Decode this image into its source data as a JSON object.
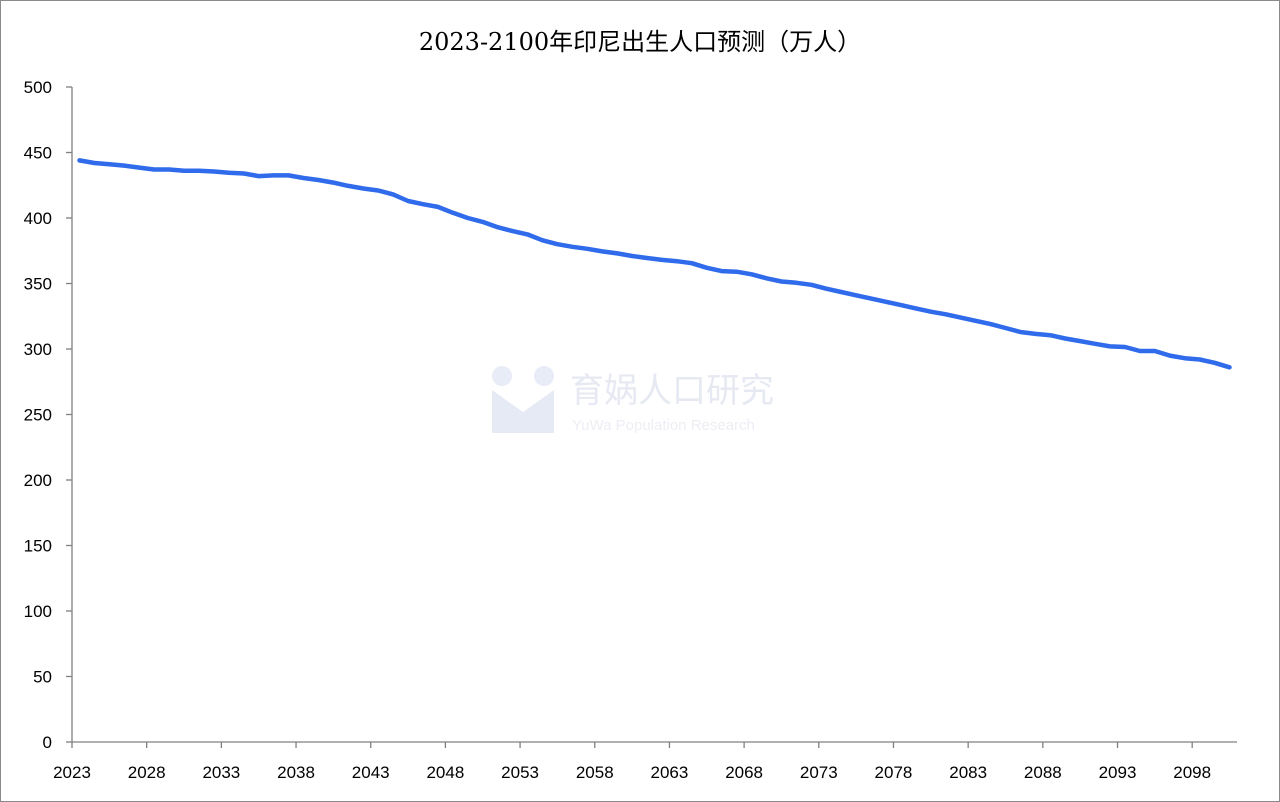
{
  "chart_data": {
    "type": "line",
    "title": "2023-2100年印尼出生人口预测（万人）",
    "xlabel": "",
    "ylabel": "",
    "ylim": [
      0,
      500
    ],
    "yticks": [
      0,
      50,
      100,
      150,
      200,
      250,
      300,
      350,
      400,
      450,
      500
    ],
    "xtick_labels": [
      "2023",
      "2028",
      "2033",
      "2038",
      "2043",
      "2048",
      "2053",
      "2058",
      "2063",
      "2068",
      "2073",
      "2078",
      "2083",
      "2088",
      "2093",
      "2098"
    ],
    "grid": false,
    "legend": "none",
    "x_start": 2023,
    "x_end": 2100,
    "series": [
      {
        "name": "出生人口",
        "color": "#2f6bea",
        "values": [
          444,
          442,
          441,
          440,
          438.5,
          437,
          437,
          436,
          436,
          435.5,
          434.5,
          434,
          432,
          432.5,
          432.5,
          430.5,
          429,
          427,
          424.5,
          422.5,
          421,
          418,
          413,
          410.5,
          408.5,
          404,
          400,
          397,
          393,
          390,
          387.5,
          383,
          380,
          378,
          376.5,
          374.5,
          373,
          371,
          369.5,
          368,
          367,
          365.5,
          362,
          359.5,
          359,
          357,
          354,
          351.5,
          350.5,
          349,
          346,
          343.5,
          341,
          338.5,
          336,
          333.5,
          331,
          328.5,
          326.5,
          324,
          321.5,
          319,
          316,
          313,
          311.5,
          310.5,
          308,
          306,
          304,
          302,
          301.5,
          298.5,
          298.5,
          295,
          293,
          292,
          289.5,
          286
        ]
      }
    ]
  },
  "watermark": {
    "cn": "育娲人口研究",
    "en": "YuWa Population Research"
  }
}
